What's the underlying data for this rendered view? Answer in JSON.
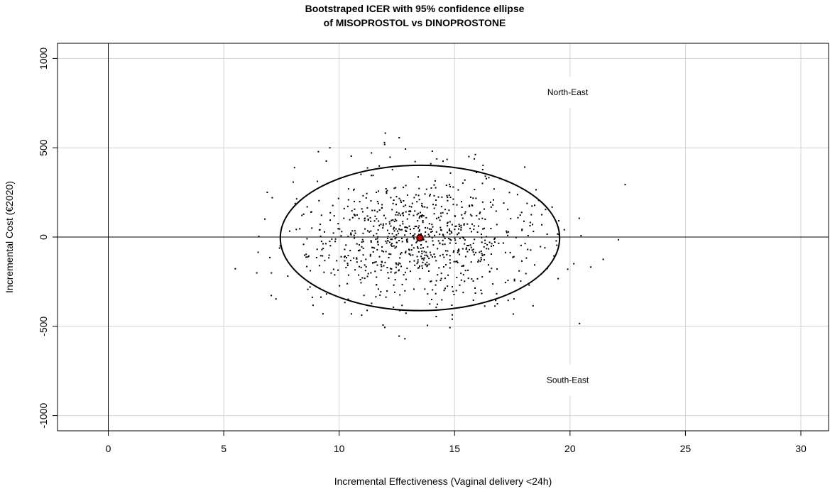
{
  "chart_data": {
    "type": "scatter",
    "title": [
      "Bootstraped ICER with 95% confidence ellipse",
      "of MISOPROSTOL vs DINOPROSTONE"
    ],
    "xlabel": "Incremental Effectiveness (Vaginal delivery <24h)",
    "ylabel": "Incremental Cost (€2020)",
    "xlim": [
      -2.2,
      31.2
    ],
    "ylim": [
      -1085,
      1085
    ],
    "xticks": [
      0,
      5,
      10,
      15,
      20,
      25,
      30
    ],
    "yticks": [
      -1000,
      -500,
      0,
      500,
      1000
    ],
    "grid": true,
    "quadrant_labels": [
      {
        "text": "North-East",
        "x": 19.9,
        "y": 810
      },
      {
        "text": "South-East",
        "x": 19.9,
        "y": -800
      }
    ],
    "mean_point": {
      "x": 13.5,
      "y": -5,
      "color": "#cc0000"
    },
    "ellipse": {
      "cx": 13.5,
      "cy": -5,
      "rx": 6.05,
      "ry": 407
    },
    "points": {
      "count": 900,
      "x_mean": 13.5,
      "y_mean": -5,
      "x_sd": 2.6,
      "y_sd": 180,
      "seed": 20200,
      "extra": [
        [
          12.0,
          582
        ],
        [
          12.6,
          556
        ],
        [
          15.9,
          462
        ],
        [
          9.1,
          478
        ],
        [
          9.6,
          500
        ],
        [
          11.4,
          471
        ],
        [
          14.5,
          425
        ],
        [
          22.1,
          -15
        ],
        [
          20.9,
          -168
        ],
        [
          20.4,
          105
        ],
        [
          14.9,
          -460
        ],
        [
          12.6,
          -555
        ],
        [
          11.9,
          -493
        ],
        [
          7.1,
          220
        ],
        [
          7.0,
          -115
        ],
        [
          9.3,
          -430
        ],
        [
          19.9,
          -180
        ],
        [
          18.4,
          -385
        ],
        [
          14.9,
          -436
        ]
      ]
    }
  }
}
